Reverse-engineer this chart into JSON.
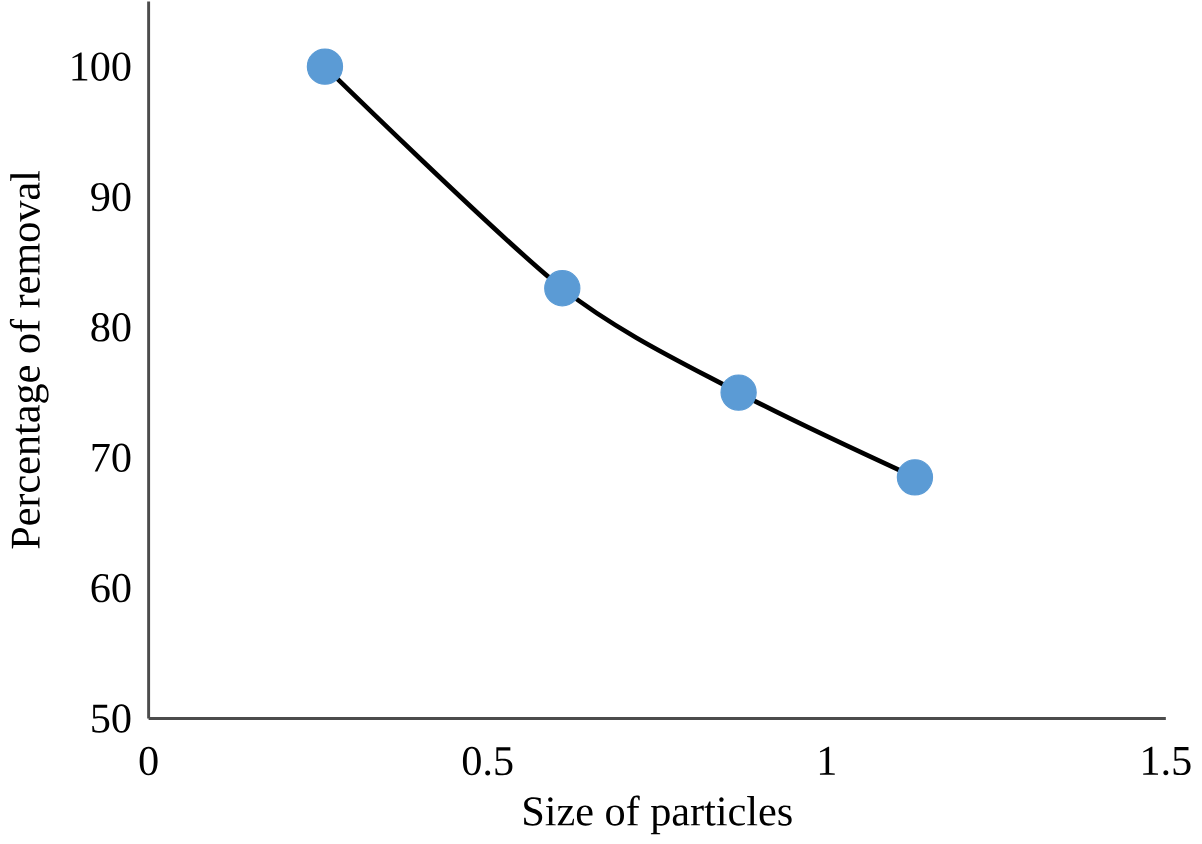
{
  "chart_data": {
    "type": "line",
    "xlabel": "Size of particles",
    "ylabel": "Percentage of removal",
    "x": [
      0.26,
      0.61,
      0.87,
      1.13
    ],
    "series": [
      {
        "color": "#5b9bd5",
        "values": [
          100,
          83,
          75,
          68.5
        ]
      }
    ],
    "xlim": [
      0,
      1.5
    ],
    "xticks": [
      0,
      0.5,
      1,
      1.5
    ],
    "ylim": [
      50,
      105
    ],
    "yticks": [
      50,
      60,
      70,
      80,
      90,
      100
    ],
    "marker": "circle",
    "grid": false
  }
}
